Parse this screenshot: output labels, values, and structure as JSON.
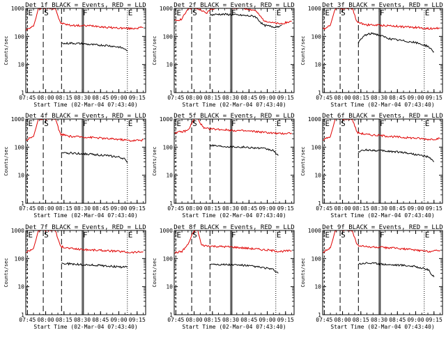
{
  "figure": {
    "xlabel": "Start Time (02-Mar-04 07:43:40)",
    "ylabel": "Counts/sec",
    "x_ticks": [
      "07:45",
      "08:00",
      "08:15",
      "08:30",
      "08:45",
      "09:00",
      "09:15"
    ],
    "y_ticks": [
      "1",
      "10",
      "100",
      "1000"
    ],
    "marker_labels": [
      "E",
      "S",
      "F",
      "E"
    ],
    "colors": {
      "events": "#000000",
      "lld": "#e00000"
    }
  },
  "chart_data": [
    {
      "type": "line",
      "title": "Det 1f BLACK = Events, RED = LLD",
      "xlabel": "Start Time (02-Mar-04 07:43:40)",
      "ylabel": "Counts/sec",
      "xlim": [
        "07:43:40",
        "09:22"
      ],
      "ylim": [
        1,
        1000
      ],
      "yscale": "log",
      "markers": {
        "E1": "07:45",
        "S": "07:58",
        "F": "08:30",
        "E2": "09:07"
      },
      "series": [
        {
          "color": "#e00000",
          "x": [
            "07:44",
            "07:50",
            "07:52",
            "07:54",
            "08:08",
            "08:12",
            "08:20",
            "08:30",
            "08:40",
            "08:50",
            "09:00",
            "09:10",
            "09:20"
          ],
          "y": [
            170,
            230,
            450,
            1000,
            1000,
            300,
            250,
            240,
            240,
            210,
            200,
            190,
            210
          ]
        },
        {
          "color": "#000000",
          "x": [
            "08:13",
            "08:15",
            "08:20",
            "08:30",
            "08:40",
            "08:50",
            "09:00",
            "09:05",
            "09:07"
          ],
          "y": [
            60,
            55,
            58,
            55,
            50,
            48,
            42,
            36,
            30
          ]
        }
      ]
    },
    {
      "type": "line",
      "title": "Det 2f BLACK = Events, RED = LLD",
      "xlabel": "Start Time (02-Mar-04 07:43:40)",
      "ylabel": "Counts/sec",
      "xlim": [
        "07:43:40",
        "09:22"
      ],
      "ylim": [
        1,
        1000
      ],
      "yscale": "log",
      "markers": {
        "E1": "07:45",
        "S": "07:58",
        "F": "08:30",
        "E2": "09:07"
      },
      "series": [
        {
          "color": "#e00000",
          "x": [
            "07:44",
            "07:50",
            "07:55",
            "08:00",
            "08:05",
            "08:10",
            "08:13",
            "08:20",
            "08:30",
            "08:40",
            "08:50",
            "08:57",
            "09:05",
            "09:10",
            "09:20"
          ],
          "y": [
            350,
            420,
            1000,
            1000,
            900,
            650,
            900,
            1100,
            1050,
            1000,
            850,
            380,
            300,
            280,
            340
          ]
        },
        {
          "color": "#000000",
          "x": [
            "08:13",
            "08:20",
            "08:30",
            "08:40",
            "08:50",
            "08:57",
            "09:05",
            "09:10",
            "09:12"
          ],
          "y": [
            580,
            620,
            600,
            560,
            520,
            250,
            220,
            230,
            260
          ]
        }
      ]
    },
    {
      "type": "line",
      "title": "Det 3f BLACK = Events, RED = LLD",
      "xlabel": "Start Time (02-Mar-04 07:43:40)",
      "ylabel": "Counts/sec",
      "xlim": [
        "07:43:40",
        "09:22"
      ],
      "ylim": [
        1,
        1000
      ],
      "yscale": "log",
      "markers": {
        "E1": "07:45",
        "S": "07:58",
        "F": "08:30",
        "E2": "09:07"
      },
      "series": [
        {
          "color": "#e00000",
          "x": [
            "07:44",
            "07:50",
            "07:52",
            "07:54",
            "08:08",
            "08:12",
            "08:20",
            "08:30",
            "08:40",
            "08:50",
            "09:00",
            "09:10",
            "09:20"
          ],
          "y": [
            180,
            250,
            500,
            1000,
            1000,
            320,
            260,
            250,
            240,
            220,
            210,
            190,
            200
          ]
        },
        {
          "color": "#000000",
          "x": [
            "08:13",
            "08:18",
            "08:25",
            "08:33",
            "08:40",
            "08:50",
            "09:00",
            "09:10",
            "09:15"
          ],
          "y": [
            60,
            110,
            130,
            100,
            80,
            70,
            60,
            45,
            28
          ]
        }
      ]
    },
    {
      "type": "line",
      "title": "Det 4f BLACK = Events, RED = LLD",
      "xlabel": "Start Time (02-Mar-04 07:43:40)",
      "ylabel": "Counts/sec",
      "xlim": [
        "07:43:40",
        "09:22"
      ],
      "ylim": [
        1,
        1000
      ],
      "yscale": "log",
      "markers": {
        "E1": "07:45",
        "S": "07:58",
        "F": "08:30",
        "E2": "09:07"
      },
      "series": [
        {
          "color": "#e00000",
          "x": [
            "07:44",
            "07:50",
            "07:52",
            "07:54",
            "08:08",
            "08:12",
            "08:20",
            "08:30",
            "08:40",
            "08:50",
            "09:00",
            "09:10",
            "09:20"
          ],
          "y": [
            180,
            240,
            480,
            1000,
            1000,
            290,
            240,
            230,
            220,
            200,
            190,
            170,
            180
          ]
        },
        {
          "color": "#000000",
          "x": [
            "08:13",
            "08:15",
            "08:20",
            "08:30",
            "08:40",
            "08:50",
            "09:00",
            "09:05",
            "09:07"
          ],
          "y": [
            65,
            60,
            62,
            58,
            55,
            50,
            44,
            38,
            28
          ]
        }
      ]
    },
    {
      "type": "line",
      "title": "Det 5f BLACK = Events, RED = LLD",
      "xlabel": "Start Time (02-Mar-04 07:43:40)",
      "ylabel": "Counts/sec",
      "xlim": [
        "07:43:40",
        "09:22"
      ],
      "ylim": [
        1,
        1000
      ],
      "yscale": "log",
      "markers": {
        "E1": "07:45",
        "S": "07:58",
        "F": "08:30",
        "E2": "09:07"
      },
      "series": [
        {
          "color": "#e00000",
          "x": [
            "07:44",
            "07:50",
            "07:55",
            "08:00",
            "08:03",
            "08:08",
            "08:12",
            "08:20",
            "08:30",
            "08:40",
            "08:50",
            "09:00",
            "09:10",
            "09:20"
          ],
          "y": [
            330,
            350,
            400,
            1000,
            1000,
            460,
            450,
            430,
            400,
            380,
            360,
            330,
            300,
            320
          ]
        },
        {
          "color": "#000000",
          "x": [
            "08:13",
            "08:20",
            "08:30",
            "08:40",
            "08:50",
            "09:00",
            "09:05",
            "09:09"
          ],
          "y": [
            120,
            110,
            105,
            100,
            95,
            85,
            75,
            50
          ]
        }
      ]
    },
    {
      "type": "line",
      "title": "Det 6f BLACK = Events, RED = LLD",
      "xlabel": "Start Time (02-Mar-04 07:43:40)",
      "ylabel": "Counts/sec",
      "xlim": [
        "07:43:40",
        "09:22"
      ],
      "ylim": [
        1,
        1000
      ],
      "yscale": "log",
      "markers": {
        "E1": "07:45",
        "S": "07:58",
        "F": "08:30",
        "E2": "09:07"
      },
      "series": [
        {
          "color": "#e00000",
          "x": [
            "07:44",
            "07:50",
            "07:52",
            "07:54",
            "08:08",
            "08:12",
            "08:20",
            "08:30",
            "08:40",
            "08:50",
            "09:00",
            "09:10",
            "09:20"
          ],
          "y": [
            180,
            240,
            480,
            1000,
            1000,
            330,
            280,
            260,
            240,
            220,
            210,
            190,
            200
          ]
        },
        {
          "color": "#000000",
          "x": [
            "08:13",
            "08:20",
            "08:30",
            "08:40",
            "08:50",
            "09:00",
            "09:10",
            "09:15"
          ],
          "y": [
            70,
            80,
            75,
            70,
            65,
            55,
            45,
            30
          ]
        }
      ]
    },
    {
      "type": "line",
      "title": "Det 7f BLACK = Events, RED = LLD",
      "xlabel": "Start Time (02-Mar-04 07:43:40)",
      "ylabel": "Counts/sec",
      "xlim": [
        "07:43:40",
        "09:22"
      ],
      "ylim": [
        1,
        1000
      ],
      "yscale": "log",
      "markers": {
        "E1": "07:45",
        "S": "07:58",
        "F": "08:30",
        "E2": "09:07"
      },
      "series": [
        {
          "color": "#e00000",
          "x": [
            "07:44",
            "07:50",
            "07:52",
            "07:54",
            "08:08",
            "08:12",
            "08:20",
            "08:30",
            "08:40",
            "08:50",
            "09:00",
            "09:10",
            "09:20"
          ],
          "y": [
            170,
            230,
            460,
            1000,
            1000,
            270,
            230,
            210,
            200,
            190,
            180,
            165,
            175
          ]
        },
        {
          "color": "#000000",
          "x": [
            "08:13",
            "08:15",
            "08:20",
            "08:30",
            "08:40",
            "08:50",
            "09:00",
            "09:07"
          ],
          "y": [
            70,
            65,
            65,
            60,
            58,
            55,
            50,
            50
          ]
        }
      ]
    },
    {
      "type": "line",
      "title": "Det 8f BLACK = Events, RED = LLD",
      "xlabel": "Start Time (02-Mar-04 07:43:40)",
      "ylabel": "Counts/sec",
      "xlim": [
        "07:43:40",
        "09:22"
      ],
      "ylim": [
        1,
        1000
      ],
      "yscale": "log",
      "markers": {
        "E1": "07:45",
        "S": "07:58",
        "F": "08:30",
        "E2": "09:07"
      },
      "series": [
        {
          "color": "#e00000",
          "x": [
            "07:44",
            "07:50",
            "07:55",
            "08:00",
            "08:03",
            "08:06",
            "08:12",
            "08:20",
            "08:30",
            "08:40",
            "08:50",
            "09:00",
            "09:10",
            "09:20"
          ],
          "y": [
            160,
            180,
            320,
            1000,
            1000,
            300,
            280,
            270,
            260,
            240,
            220,
            200,
            180,
            190
          ]
        },
        {
          "color": "#000000",
          "x": [
            "08:13",
            "08:15",
            "08:20",
            "08:30",
            "08:40",
            "08:50",
            "09:00",
            "09:05",
            "09:09"
          ],
          "y": [
            60,
            65,
            62,
            60,
            58,
            52,
            45,
            40,
            30
          ]
        }
      ]
    },
    {
      "type": "line",
      "title": "Det 9f BLACK = Events, RED = LLD",
      "xlabel": "Start Time (02-Mar-04 07:43:40)",
      "ylabel": "Counts/sec",
      "xlim": [
        "07:43:40",
        "09:22"
      ],
      "ylim": [
        1,
        1000
      ],
      "yscale": "log",
      "markers": {
        "E1": "07:45",
        "S": "07:58",
        "F": "08:30",
        "E2": "09:07"
      },
      "series": [
        {
          "color": "#e00000",
          "x": [
            "07:44",
            "07:50",
            "07:52",
            "07:54",
            "08:08",
            "08:12",
            "08:20",
            "08:30",
            "08:40",
            "08:50",
            "09:00",
            "09:10",
            "09:20"
          ],
          "y": [
            170,
            240,
            470,
            1000,
            1000,
            300,
            260,
            250,
            240,
            220,
            200,
            180,
            195
          ]
        },
        {
          "color": "#000000",
          "x": [
            "08:13",
            "08:20",
            "08:30",
            "08:40",
            "08:50",
            "09:00",
            "09:10",
            "09:15"
          ],
          "y": [
            65,
            70,
            65,
            60,
            58,
            52,
            40,
            22
          ]
        }
      ]
    }
  ]
}
